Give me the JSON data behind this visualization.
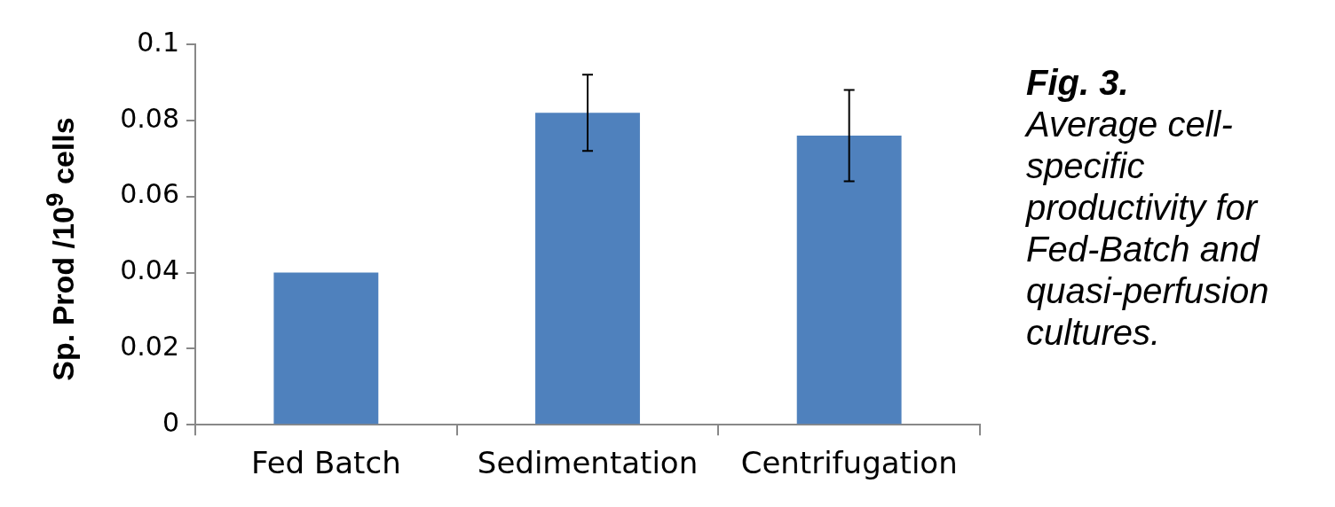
{
  "chart_data": {
    "type": "bar",
    "ylabel": "Sp. Prod /10$^{9}$ cells",
    "categories": [
      "Fed Batch",
      "Sedimentation",
      "Centrifugation"
    ],
    "values": [
      0.04,
      0.082,
      0.076
    ],
    "color": "#4f81bd",
    "errors": [
      null,
      [
        0.072,
        0.092
      ],
      [
        0.064,
        0.088
      ]
    ],
    "ylim": [
      0,
      0.1
    ],
    "yticks": [
      0,
      0.02,
      0.04,
      0.06,
      0.08,
      0.1
    ],
    "grid": false,
    "annotations": [
      "Fig. 3.",
      "Average cell-specific productivity for Fed-Batch and quasi-perfusion cultures."
    ]
  }
}
